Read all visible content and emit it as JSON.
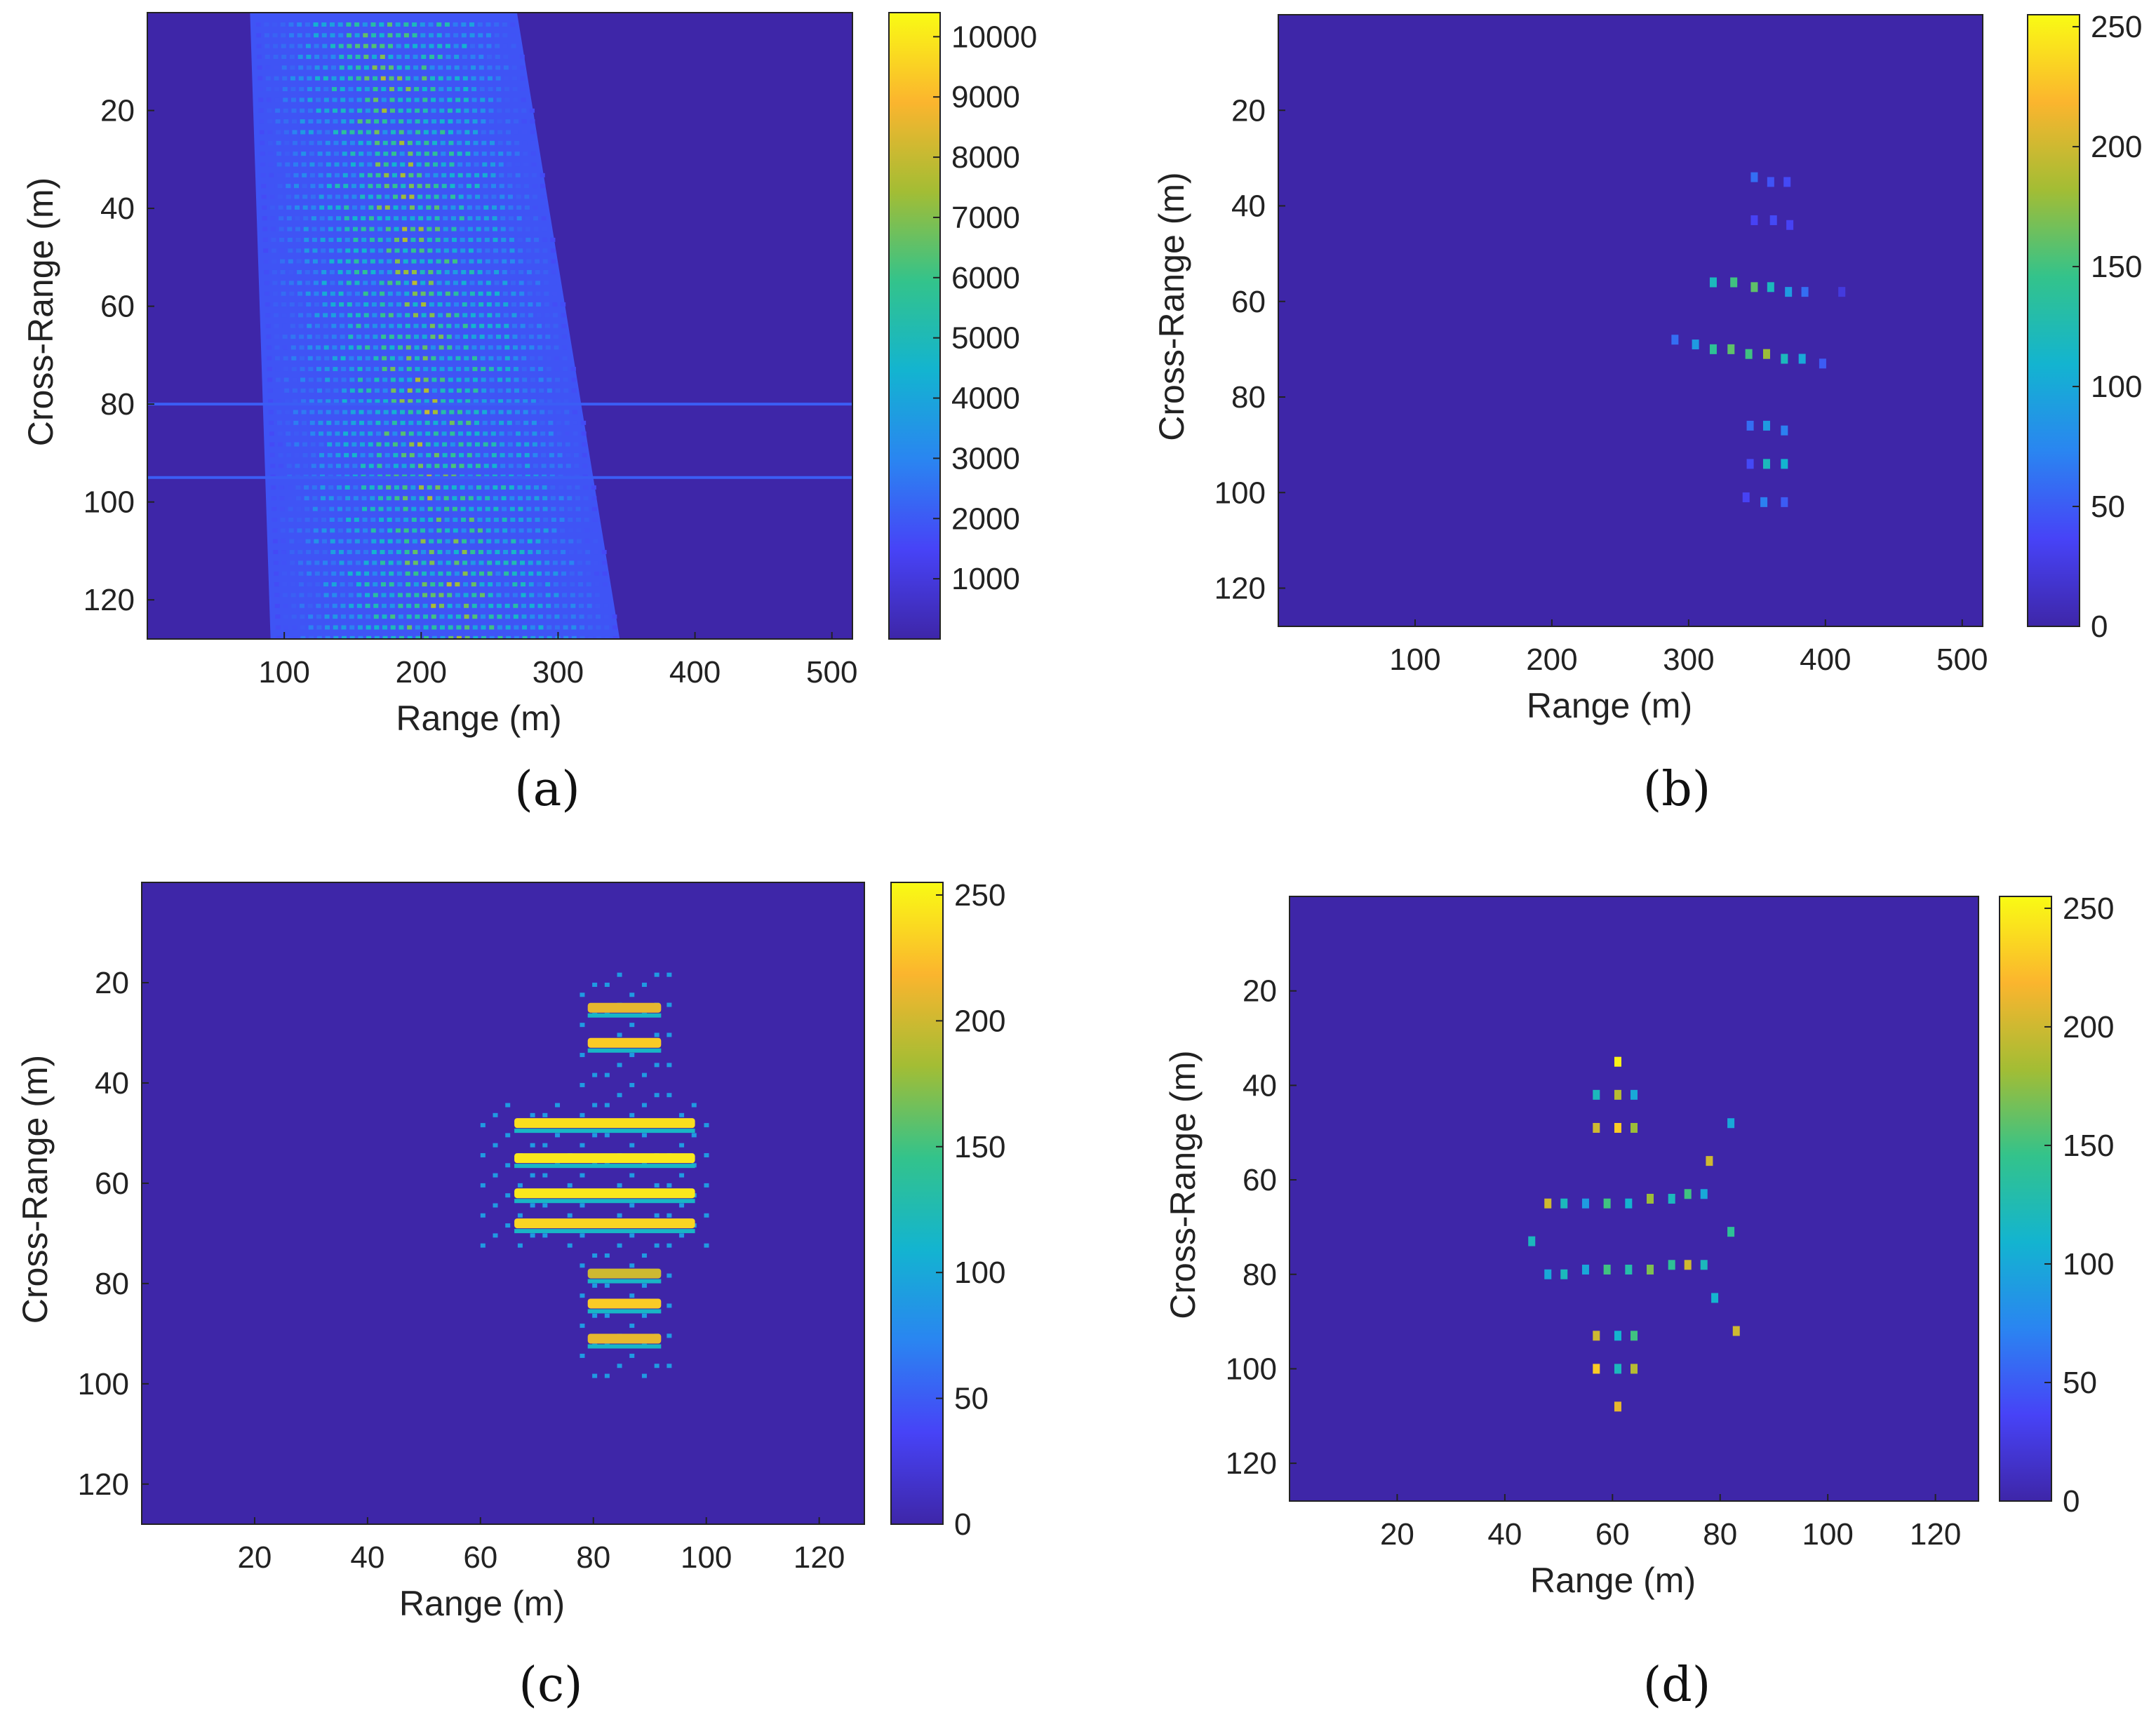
{
  "colormap": [
    "#3e26a8",
    "#4743f7",
    "#2a85f1",
    "#13b4d0",
    "#33c38b",
    "#a3bd34",
    "#fbb52e",
    "#f9fb14"
  ],
  "chart_data": [
    {
      "panel": "a",
      "letter": "(a)",
      "type": "heatmap",
      "xlabel": "Range (m)",
      "ylabel": "Cross-Range (m)",
      "xlim": [
        0,
        515
      ],
      "ylim": [
        0,
        128
      ],
      "xticks": [
        100,
        200,
        300,
        400,
        500
      ],
      "yticks": [
        20,
        40,
        60,
        80,
        100,
        120
      ],
      "clim": [
        0,
        10400
      ],
      "cticks": [
        1000,
        2000,
        3000,
        4000,
        5000,
        6000,
        7000,
        8000,
        9000,
        10000
      ],
      "description": "wide slanted smeared target image",
      "region": {
        "top": {
          "y": 0,
          "x1": 75,
          "x2": 270
        },
        "bottom": {
          "y": 128,
          "x1": 90,
          "x2": 345
        }
      },
      "stripes": [
        80,
        95
      ],
      "points": []
    },
    {
      "panel": "b",
      "letter": "(b)",
      "type": "heatmap",
      "xlabel": "Range (m)",
      "ylabel": "Cross-Range (m)",
      "xlim": [
        0,
        515
      ],
      "ylim": [
        0,
        128
      ],
      "xticks": [
        100,
        200,
        300,
        400,
        500
      ],
      "yticks": [
        20,
        40,
        60,
        80,
        100,
        120
      ],
      "clim": [
        0,
        255
      ],
      "cticks": [
        0,
        50,
        100,
        150,
        200,
        250
      ],
      "points": [
        [
          348,
          34,
          60
        ],
        [
          360,
          35,
          45
        ],
        [
          372,
          35,
          40
        ],
        [
          348,
          43,
          35
        ],
        [
          362,
          43,
          40
        ],
        [
          374,
          44,
          35
        ],
        [
          318,
          56,
          120
        ],
        [
          333,
          56,
          150
        ],
        [
          348,
          57,
          160
        ],
        [
          360,
          57,
          120
        ],
        [
          373,
          58,
          90
        ],
        [
          385,
          58,
          60
        ],
        [
          412,
          58,
          25
        ],
        [
          290,
          68,
          60
        ],
        [
          305,
          69,
          90
        ],
        [
          318,
          70,
          140
        ],
        [
          331,
          70,
          160
        ],
        [
          344,
          71,
          150
        ],
        [
          357,
          71,
          180
        ],
        [
          370,
          72,
          120
        ],
        [
          383,
          72,
          100
        ],
        [
          398,
          73,
          50
        ],
        [
          345,
          86,
          60
        ],
        [
          357,
          86,
          90
        ],
        [
          370,
          87,
          70
        ],
        [
          345,
          94,
          40
        ],
        [
          357,
          94,
          120
        ],
        [
          370,
          94,
          110
        ],
        [
          342,
          101,
          35
        ],
        [
          355,
          102,
          70
        ],
        [
          370,
          102,
          50
        ]
      ]
    },
    {
      "panel": "c",
      "letter": "(c)",
      "type": "heatmap",
      "xlabel": "Range (m)",
      "ylabel": "Cross-Range (m)",
      "xlim": [
        0,
        128
      ],
      "ylim": [
        0,
        128
      ],
      "xticks": [
        20,
        40,
        60,
        80,
        100,
        120
      ],
      "yticks": [
        20,
        40,
        60,
        80,
        100,
        120
      ],
      "clim": [
        0,
        255
      ],
      "cticks": [
        0,
        50,
        100,
        150,
        200,
        250
      ],
      "bands": [
        {
          "y": 25,
          "x1": 79,
          "x2": 92,
          "v": 210
        },
        {
          "y": 32,
          "x1": 79,
          "x2": 92,
          "v": 230
        },
        {
          "y": 48,
          "x1": 66,
          "x2": 98,
          "v": 240
        },
        {
          "y": 55,
          "x1": 66,
          "x2": 98,
          "v": 245
        },
        {
          "y": 62,
          "x1": 66,
          "x2": 98,
          "v": 245
        },
        {
          "y": 68,
          "x1": 66,
          "x2": 98,
          "v": 235
        },
        {
          "y": 78,
          "x1": 79,
          "x2": 92,
          "v": 200
        },
        {
          "y": 84,
          "x1": 79,
          "x2": 92,
          "v": 230
        },
        {
          "y": 91,
          "x1": 79,
          "x2": 92,
          "v": 210
        }
      ],
      "points": []
    },
    {
      "panel": "d",
      "letter": "(d)",
      "type": "heatmap",
      "xlabel": "Range (m)",
      "ylabel": "Cross-Range (m)",
      "xlim": [
        0,
        128
      ],
      "ylim": [
        0,
        128
      ],
      "xticks": [
        20,
        40,
        60,
        80,
        100,
        120
      ],
      "yticks": [
        20,
        40,
        60,
        80,
        100,
        120
      ],
      "clim": [
        0,
        255
      ],
      "cticks": [
        0,
        50,
        100,
        150,
        200,
        250
      ],
      "points": [
        [
          61,
          35,
          250
        ],
        [
          57,
          42,
          120
        ],
        [
          61,
          42,
          190
        ],
        [
          64,
          42,
          100
        ],
        [
          57,
          49,
          200
        ],
        [
          61,
          49,
          230
        ],
        [
          64,
          49,
          180
        ],
        [
          48,
          65,
          200
        ],
        [
          51,
          65,
          120
        ],
        [
          55,
          65,
          90
        ],
        [
          59,
          65,
          150
        ],
        [
          63,
          65,
          110
        ],
        [
          67,
          64,
          180
        ],
        [
          71,
          64,
          120
        ],
        [
          74,
          63,
          150
        ],
        [
          77,
          63,
          100
        ],
        [
          78,
          56,
          200
        ],
        [
          82,
          48,
          100
        ],
        [
          45,
          73,
          120
        ],
        [
          82,
          71,
          140
        ],
        [
          48,
          80,
          100
        ],
        [
          51,
          80,
          120
        ],
        [
          55,
          79,
          100
        ],
        [
          59,
          79,
          150
        ],
        [
          63,
          79,
          130
        ],
        [
          67,
          79,
          170
        ],
        [
          71,
          78,
          140
        ],
        [
          74,
          78,
          200
        ],
        [
          77,
          78,
          120
        ],
        [
          79,
          85,
          110
        ],
        [
          83,
          92,
          200
        ],
        [
          57,
          93,
          200
        ],
        [
          61,
          93,
          110
        ],
        [
          64,
          93,
          150
        ],
        [
          57,
          100,
          230
        ],
        [
          61,
          100,
          120
        ],
        [
          64,
          100,
          190
        ],
        [
          61,
          108,
          210
        ]
      ]
    }
  ]
}
